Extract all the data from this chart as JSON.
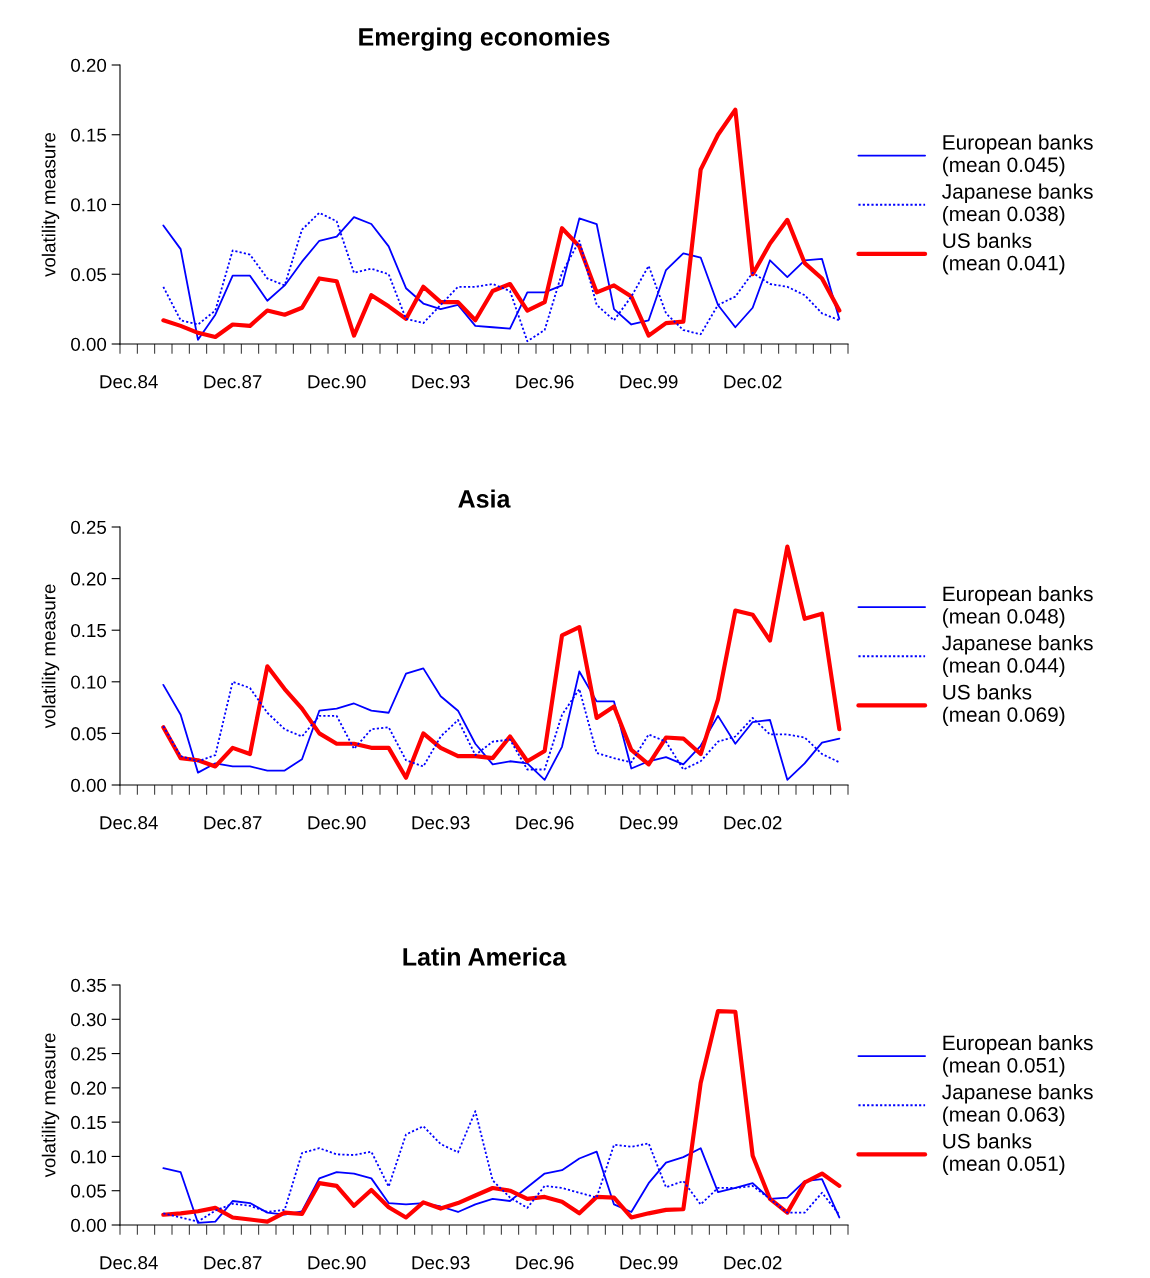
{
  "chart_data": [
    {
      "type": "line",
      "title": "Emerging economies",
      "ylabel": "volatility measure",
      "categories": [
        "Dec.84",
        null,
        null,
        null,
        null,
        null,
        "Dec.87",
        null,
        null,
        null,
        null,
        null,
        "Dec.90",
        null,
        null,
        null,
        null,
        null,
        "Dec.93",
        null,
        null,
        null,
        null,
        null,
        "Dec.96",
        null,
        null,
        null,
        null,
        null,
        "Dec.99",
        null,
        null,
        null,
        null,
        null,
        "Dec.02",
        null,
        null,
        null,
        null,
        null
      ],
      "ylim": [
        0,
        0.2
      ],
      "yticks": [
        {
          "value": 0,
          "label": "0.00"
        },
        {
          "value": 0.05,
          "label": "0.05"
        },
        {
          "value": 0.1,
          "label": "0.10"
        },
        {
          "value": 0.15,
          "label": "0.15"
        },
        {
          "value": 0.2,
          "label": "0.20"
        }
      ],
      "grid": false,
      "legend": "right",
      "marker": "none",
      "series": [
        {
          "name": "European banks\n(mean 0.045)",
          "color": "#0000ff",
          "line_style": "solid",
          "values": [
            null,
            null,
            0.085,
            0.068,
            0.003,
            0.021,
            0.049,
            0.049,
            0.031,
            0.042,
            0.059,
            0.074,
            0.077,
            0.091,
            0.086,
            0.07,
            0.04,
            0.029,
            0.025,
            0.028,
            0.013,
            0.012,
            0.011,
            0.037,
            0.037,
            0.042,
            0.09,
            0.086,
            0.025,
            0.014,
            0.017,
            0.053,
            0.065,
            0.062,
            0.028,
            0.012,
            0.026,
            0.06,
            0.048,
            0.06,
            0.061,
            0.018
          ]
        },
        {
          "name": "Japanese banks\n(mean 0.038)",
          "color": "#0000ff",
          "line_style": "dotted",
          "values": [
            null,
            null,
            0.041,
            0.017,
            0.014,
            0.024,
            0.067,
            0.064,
            0.047,
            0.042,
            0.082,
            0.094,
            0.088,
            0.051,
            0.054,
            0.05,
            0.018,
            0.015,
            0.028,
            0.041,
            0.041,
            0.043,
            0.038,
            0.002,
            0.01,
            0.051,
            0.074,
            0.028,
            0.017,
            0.034,
            0.056,
            0.022,
            0.01,
            0.007,
            0.028,
            0.034,
            0.051,
            0.043,
            0.041,
            0.035,
            0.022,
            0.017
          ]
        },
        {
          "name": "US banks\n(mean 0.041)",
          "color": "#ff0000",
          "line_style": "solid",
          "values": [
            null,
            null,
            0.017,
            0.013,
            0.008,
            0.005,
            0.014,
            0.013,
            0.024,
            0.021,
            0.026,
            0.047,
            0.045,
            0.006,
            0.035,
            0.027,
            0.018,
            0.041,
            0.03,
            0.03,
            0.017,
            0.038,
            0.043,
            0.024,
            0.03,
            0.083,
            0.07,
            0.037,
            0.042,
            0.034,
            0.006,
            0.015,
            0.016,
            0.125,
            0.15,
            0.168,
            0.05,
            0.072,
            0.089,
            0.058,
            0.047,
            0.024
          ]
        }
      ]
    },
    {
      "type": "line",
      "title": "Asia",
      "ylabel": "volatility measure",
      "categories": [
        "Dec.84",
        null,
        null,
        null,
        null,
        null,
        "Dec.87",
        null,
        null,
        null,
        null,
        null,
        "Dec.90",
        null,
        null,
        null,
        null,
        null,
        "Dec.93",
        null,
        null,
        null,
        null,
        null,
        "Dec.96",
        null,
        null,
        null,
        null,
        null,
        "Dec.99",
        null,
        null,
        null,
        null,
        null,
        "Dec.02",
        null,
        null,
        null,
        null,
        null
      ],
      "ylim": [
        0,
        0.25
      ],
      "yticks": [
        {
          "value": 0,
          "label": "0.00"
        },
        {
          "value": 0.05,
          "label": "0.05"
        },
        {
          "value": 0.1,
          "label": "0.10"
        },
        {
          "value": 0.15,
          "label": "0.15"
        },
        {
          "value": 0.2,
          "label": "0.20"
        },
        {
          "value": 0.25,
          "label": "0.25"
        }
      ],
      "grid": false,
      "legend": "right",
      "marker": "none",
      "series": [
        {
          "name": "European banks\n(mean 0.048)",
          "color": "#0000ff",
          "line_style": "solid",
          "values": [
            null,
            null,
            0.097,
            0.068,
            0.012,
            0.021,
            0.018,
            0.018,
            0.014,
            0.014,
            0.025,
            0.072,
            0.074,
            0.079,
            0.072,
            0.07,
            0.108,
            0.113,
            0.086,
            0.072,
            0.04,
            0.02,
            0.023,
            0.021,
            0.005,
            0.037,
            0.11,
            0.081,
            0.081,
            0.016,
            0.023,
            0.027,
            0.02,
            0.038,
            0.067,
            0.04,
            0.061,
            0.063,
            0.005,
            0.021,
            0.041,
            0.045
          ]
        },
        {
          "name": "Japanese banks\n(mean 0.044)",
          "color": "#0000ff",
          "line_style": "dotted",
          "values": [
            null,
            null,
            0.057,
            0.028,
            0.023,
            0.029,
            0.1,
            0.094,
            0.07,
            0.054,
            0.047,
            0.067,
            0.067,
            0.035,
            0.054,
            0.056,
            0.024,
            0.018,
            0.047,
            0.063,
            0.029,
            0.042,
            0.044,
            0.015,
            0.015,
            0.068,
            0.093,
            0.031,
            0.026,
            0.022,
            0.049,
            0.042,
            0.015,
            0.023,
            0.042,
            0.047,
            0.065,
            0.049,
            0.049,
            0.046,
            0.03,
            0.022
          ]
        },
        {
          "name": "US banks\n(mean 0.069)",
          "color": "#ff0000",
          "line_style": "solid",
          "values": [
            null,
            null,
            0.056,
            0.026,
            0.024,
            0.018,
            0.036,
            0.03,
            0.115,
            0.093,
            0.074,
            0.05,
            0.04,
            0.04,
            0.036,
            0.036,
            0.007,
            0.05,
            0.036,
            0.028,
            0.028,
            0.026,
            0.047,
            0.023,
            0.033,
            0.145,
            0.153,
            0.065,
            0.076,
            0.034,
            0.02,
            0.046,
            0.045,
            0.03,
            0.083,
            0.169,
            0.165,
            0.14,
            0.231,
            0.161,
            0.166,
            0.054
          ]
        }
      ]
    },
    {
      "type": "line",
      "title": "Latin America",
      "ylabel": "volatility measure",
      "categories": [
        "Dec.84",
        null,
        null,
        null,
        null,
        null,
        "Dec.87",
        null,
        null,
        null,
        null,
        null,
        "Dec.90",
        null,
        null,
        null,
        null,
        null,
        "Dec.93",
        null,
        null,
        null,
        null,
        null,
        "Dec.96",
        null,
        null,
        null,
        null,
        null,
        "Dec.99",
        null,
        null,
        null,
        null,
        null,
        "Dec.02",
        null,
        null,
        null,
        null,
        null
      ],
      "ylim": [
        0,
        0.35
      ],
      "yticks": [
        {
          "value": 0,
          "label": "0.00"
        },
        {
          "value": 0.05,
          "label": "0.05"
        },
        {
          "value": 0.1,
          "label": "0.10"
        },
        {
          "value": 0.15,
          "label": "0.15"
        },
        {
          "value": 0.2,
          "label": "0.20"
        },
        {
          "value": 0.25,
          "label": "0.25"
        },
        {
          "value": 0.3,
          "label": "0.30"
        },
        {
          "value": 0.35,
          "label": "0.35"
        }
      ],
      "grid": false,
      "legend": "right",
      "marker": "none",
      "series": [
        {
          "name": "European banks\n(mean 0.051)",
          "color": "#0000ff",
          "line_style": "solid",
          "values": [
            null,
            null,
            0.083,
            0.077,
            0.003,
            0.005,
            0.035,
            0.032,
            0.018,
            0.015,
            0.02,
            0.068,
            0.077,
            0.075,
            0.068,
            0.032,
            0.03,
            0.032,
            0.027,
            0.019,
            0.03,
            0.038,
            0.035,
            0.055,
            0.075,
            0.08,
            0.097,
            0.107,
            0.03,
            0.019,
            0.061,
            0.091,
            0.099,
            0.112,
            0.048,
            0.054,
            0.061,
            0.038,
            0.04,
            0.064,
            0.067,
            0.011
          ]
        },
        {
          "name": "Japanese banks\n(mean 0.063)",
          "color": "#0000ff",
          "line_style": "dotted",
          "values": [
            null,
            null,
            0.017,
            0.011,
            0.005,
            0.021,
            0.031,
            0.028,
            0.019,
            0.022,
            0.105,
            0.112,
            0.103,
            0.102,
            0.107,
            0.056,
            0.132,
            0.144,
            0.118,
            0.106,
            0.166,
            0.065,
            0.04,
            0.025,
            0.057,
            0.054,
            0.047,
            0.04,
            0.117,
            0.114,
            0.119,
            0.055,
            0.064,
            0.03,
            0.054,
            0.054,
            0.057,
            0.038,
            0.018,
            0.018,
            0.047,
            0.015
          ]
        },
        {
          "name": "US banks\n(mean 0.051)",
          "color": "#ff0000",
          "line_style": "solid",
          "values": [
            null,
            null,
            0.015,
            0.017,
            0.02,
            0.025,
            0.011,
            0.008,
            0.005,
            0.018,
            0.016,
            0.061,
            0.057,
            0.028,
            0.051,
            0.026,
            0.011,
            0.033,
            0.024,
            0.032,
            0.043,
            0.054,
            0.05,
            0.038,
            0.041,
            0.034,
            0.017,
            0.041,
            0.04,
            0.011,
            0.017,
            0.022,
            0.023,
            0.207,
            0.312,
            0.311,
            0.101,
            0.038,
            0.018,
            0.062,
            0.075,
            0.057
          ]
        }
      ]
    }
  ]
}
